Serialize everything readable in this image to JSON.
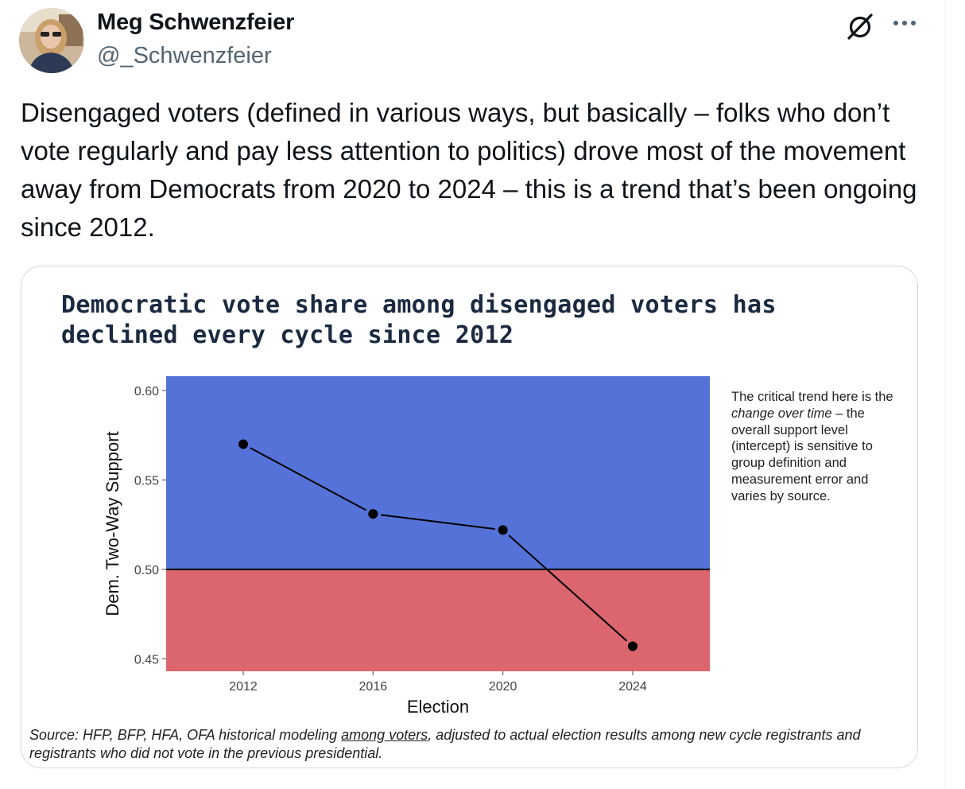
{
  "author": {
    "display_name": "Meg Schwenzfeier",
    "handle": "@_Schwenzfeier"
  },
  "icons": {
    "grok": "grok-icon",
    "more": "more-dots-icon"
  },
  "tweet": {
    "text": "Disengaged voters (defined in various ways, but basically – folks who don’t vote regularly and pay less attention to politics) drove most of the movement away from Democrats from 2020 to 2024 – this is a trend that’s been ongoing since 2012."
  },
  "card": {
    "title_line1": "Democratic vote share among disengaged voters has",
    "title_line2": "declined every cycle since 2012",
    "note_part1": "The critical trend here is the ",
    "note_em": "change over time",
    "note_part2": " – the overall support level (intercept) is sensitive to group definition and measurement error and varies by source.",
    "source_part1": "Source: HFP, BFP, HFA, OFA historical modeling ",
    "source_link": "among voters",
    "source_part2": ", adjusted to actual election results among new cycle registrants and registrants who did not vote in the previous presidential."
  },
  "chart_data": {
    "type": "line",
    "title": "Democratic vote share among disengaged voters has declined every cycle since 2012",
    "xlabel": "Election",
    "ylabel": "Dem. Two-Way Support",
    "categories": [
      "2012",
      "2016",
      "2020",
      "2024"
    ],
    "series": [
      {
        "values": [
          0.57,
          0.531,
          0.522,
          0.457
        ]
      }
    ],
    "ylim": [
      0.443,
      0.608
    ],
    "yticks": [
      0.45,
      0.5,
      0.55,
      0.6
    ],
    "ytick_labels": [
      "0.45",
      "0.50",
      "0.55",
      "0.60"
    ],
    "reference_line": 0.5,
    "colors": {
      "above_fill": "#5472d8",
      "below_fill": "#db6670",
      "line": "#000000"
    },
    "grid": false,
    "legend": "none"
  }
}
